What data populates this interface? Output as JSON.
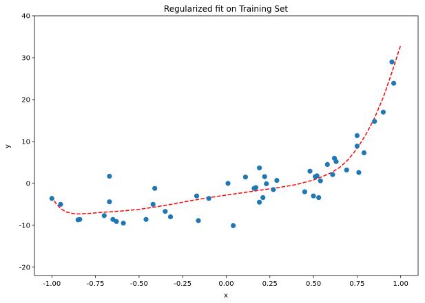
{
  "chart_data": {
    "type": "scatter",
    "title": "Regularized fit on Training Set",
    "xlabel": "x",
    "ylabel": "y",
    "xlim": [
      -1.1,
      1.1
    ],
    "ylim": [
      -22,
      40
    ],
    "grid": false,
    "x_ticks": [
      -1.0,
      -0.75,
      -0.5,
      -0.25,
      0.0,
      0.25,
      0.5,
      0.75,
      1.0
    ],
    "x_tick_labels": [
      "-1.00",
      "-0.75",
      "-0.50",
      "-0.25",
      "0.00",
      "0.25",
      "0.50",
      "0.75",
      "1.00"
    ],
    "y_ticks": [
      -20,
      -10,
      0,
      10,
      20,
      30,
      40
    ],
    "y_tick_labels": [
      "-20",
      "-10",
      "0",
      "10",
      "20",
      "30",
      "40"
    ],
    "colors": {
      "points": "#1f77b4",
      "fit": "#ff0000"
    },
    "series": [
      {
        "kind": "points",
        "x": [
          -1.0,
          -0.95,
          -0.85,
          -0.84,
          -0.7,
          -0.67,
          -0.67,
          -0.65,
          -0.63,
          -0.59,
          -0.46,
          -0.42,
          -0.41,
          -0.35,
          -0.32,
          -0.17,
          -0.16,
          -0.1,
          0.01,
          0.04,
          0.11,
          0.16,
          0.17,
          0.19,
          0.19,
          0.21,
          0.22,
          0.23,
          0.27,
          0.29,
          0.45,
          0.48,
          0.5,
          0.51,
          0.52,
          0.53,
          0.54,
          0.58,
          0.61,
          0.62,
          0.63,
          0.69,
          0.75,
          0.75,
          0.76,
          0.79,
          0.85,
          0.9,
          0.95,
          0.96
        ],
        "y": [
          -3.6,
          -5.0,
          -8.7,
          -8.6,
          -7.7,
          1.7,
          -4.4,
          -8.6,
          -9.1,
          -9.5,
          -8.6,
          -5.0,
          -1.2,
          -6.7,
          -8.0,
          -3.0,
          -8.9,
          -3.6,
          0.0,
          -10.1,
          1.5,
          -1.2,
          -1.0,
          3.7,
          -4.5,
          -3.4,
          1.6,
          -0.1,
          -1.5,
          0.7,
          -2.0,
          2.9,
          -3.0,
          1.6,
          1.8,
          -3.4,
          0.6,
          4.5,
          2.1,
          6.0,
          5.2,
          3.2,
          8.9,
          11.4,
          2.6,
          7.3,
          14.8,
          17.0,
          29.0,
          23.9
        ]
      },
      {
        "kind": "fit",
        "style": "dashed",
        "x": [
          -1.0,
          -0.98,
          -0.95,
          -0.92,
          -0.88,
          -0.85,
          -0.8,
          -0.7,
          -0.6,
          -0.5,
          -0.4,
          -0.3,
          -0.2,
          -0.1,
          0.0,
          0.1,
          0.2,
          0.3,
          0.4,
          0.5,
          0.55,
          0.6,
          0.65,
          0.7,
          0.75,
          0.8,
          0.85,
          0.9,
          0.95,
          1.0
        ],
        "y": [
          -3.0,
          -4.6,
          -6.0,
          -6.8,
          -7.2,
          -7.3,
          -7.2,
          -6.9,
          -6.6,
          -6.2,
          -5.6,
          -4.9,
          -4.1,
          -3.4,
          -2.8,
          -2.2,
          -1.6,
          -1.0,
          -0.3,
          0.8,
          1.6,
          2.5,
          3.8,
          5.7,
          8.3,
          11.6,
          15.6,
          20.5,
          26.5,
          33.0
        ]
      }
    ]
  }
}
